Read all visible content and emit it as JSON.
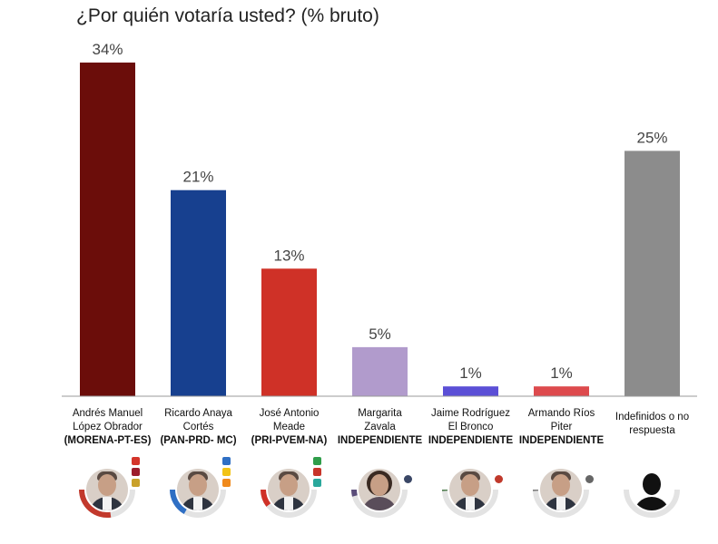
{
  "chart_data": {
    "type": "bar",
    "title": "¿Por quién votaría usted? (% bruto)",
    "ylim": [
      0,
      34
    ],
    "categories": [
      {
        "name": "Andrés Manuel López Obrador",
        "line1": "Andrés Manuel",
        "line2": "López Obrador",
        "party": "(MORENA-PT-ES)"
      },
      {
        "name": "Ricardo Anaya Cortés",
        "line1": "Ricardo Anaya",
        "line2": "Cortés",
        "party": "(PAN-PRD- MC)"
      },
      {
        "name": "José Antonio Meade",
        "line1": "José Antonio",
        "line2": "Meade",
        "party": "(PRI-PVEM-NA)"
      },
      {
        "name": "Margarita Zavala",
        "line1": "Margarita",
        "line2": "Zavala",
        "party": "INDEPENDIENTE"
      },
      {
        "name": "Jaime Rodríguez El Bronco",
        "line1": "Jaime Rodríguez",
        "line2": "El Bronco",
        "party": "INDEPENDIENTE"
      },
      {
        "name": "Armando Ríos Piter",
        "line1": "Armando Ríos",
        "line2": "Piter",
        "party": "INDEPENDIENTE"
      },
      {
        "name": "Indefinidos o no respuesta",
        "line1": "Indefinidos o no",
        "line2": "respuesta",
        "party": ""
      }
    ],
    "values": [
      34,
      21,
      13,
      5,
      1,
      1,
      25
    ],
    "value_labels": [
      "34%",
      "21%",
      "13%",
      "5%",
      "1%",
      "1%",
      "25%"
    ],
    "colors": [
      "#6b0d0a",
      "#17408f",
      "#cf3127",
      "#b19bcc",
      "#5b4fd6",
      "#dd4a4d",
      "#8c8c8c"
    ],
    "ring_colors": [
      "#c2392c",
      "#2f6fc4",
      "#cf3127",
      "#5a4d7a",
      "#4a7a4a",
      "#777777",
      "#999999"
    ],
    "ring_fraction": [
      0.34,
      0.21,
      0.13,
      0.05,
      0.01,
      0.01,
      0.0
    ],
    "avatar_icons": [
      "person-photo-icon",
      "person-photo-icon",
      "person-photo-icon",
      "person-photo-icon",
      "person-photo-icon",
      "person-photo-icon",
      "unknown-person-silhouette-icon"
    ],
    "grid": false,
    "legend": "none"
  }
}
